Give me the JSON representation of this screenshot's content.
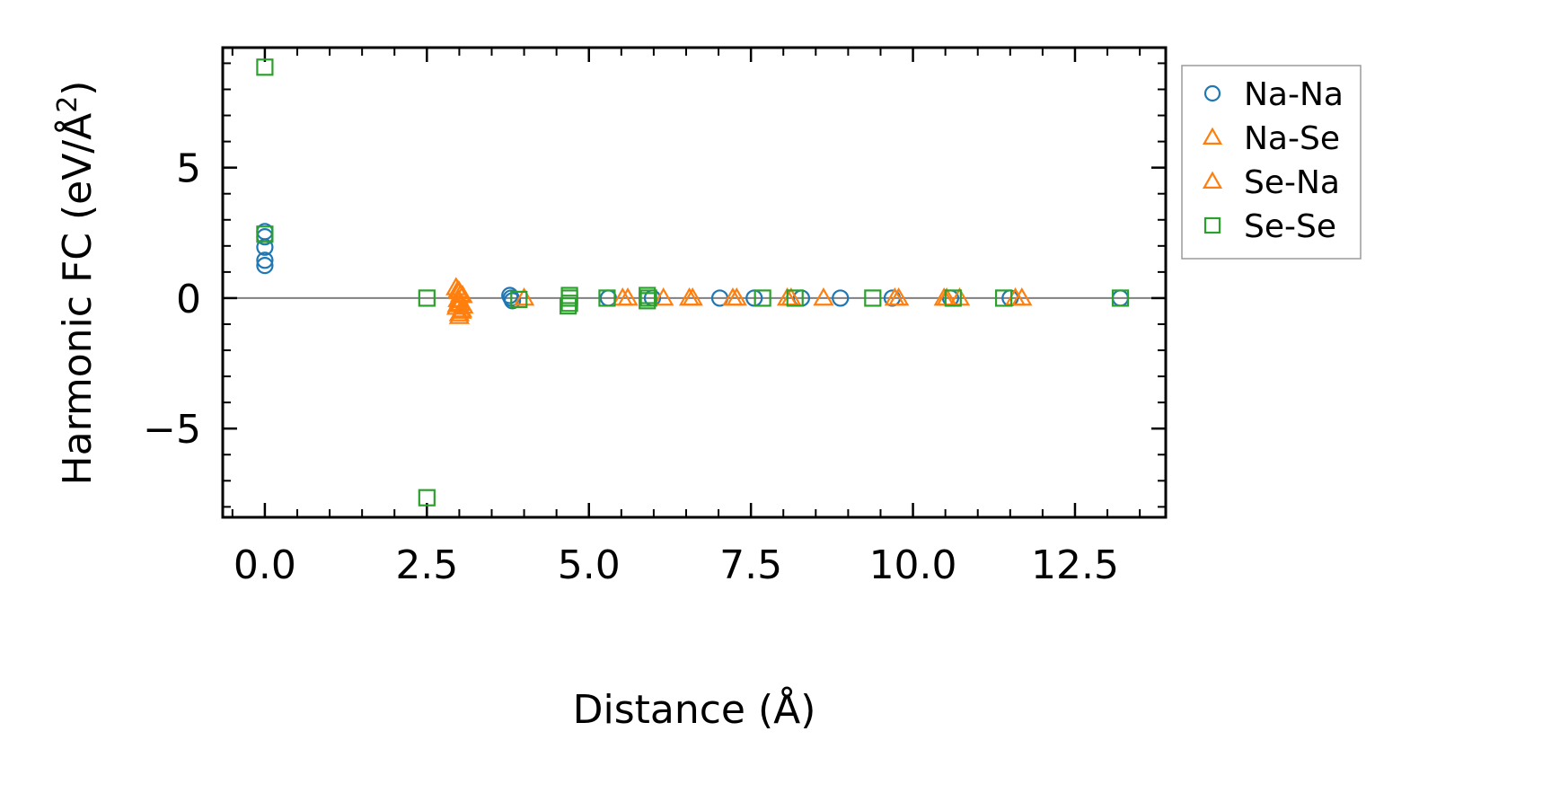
{
  "chart_data": {
    "type": "scatter",
    "title": "",
    "xlabel": "Distance (Å)",
    "ylabel": "Harmonic FC (eV/Å",
    "ylabel_superscript": "2",
    "ylabel_suffix": ")",
    "xlim": [
      -0.65,
      13.9
    ],
    "ylim": [
      -8.4,
      9.6
    ],
    "xticks": [
      0.0,
      2.5,
      5.0,
      7.5,
      10.0,
      12.5
    ],
    "xtick_labels": [
      "0.0",
      "2.5",
      "5.0",
      "7.5",
      "10.0",
      "12.5"
    ],
    "yticks": [
      -5,
      0,
      5
    ],
    "ytick_labels": [
      "−5",
      "0",
      "5"
    ],
    "zero_line": true,
    "legend_position": "outside-right-top",
    "series": [
      {
        "name": "Na-Na",
        "marker": "circle",
        "color": "#1f77b4",
        "points": [
          [
            0.0,
            2.55
          ],
          [
            0.0,
            2.35
          ],
          [
            0.0,
            1.95
          ],
          [
            0.0,
            1.45
          ],
          [
            0.0,
            1.25
          ],
          [
            3.78,
            0.1
          ],
          [
            3.8,
            0.0
          ],
          [
            3.82,
            -0.1
          ],
          [
            5.3,
            0.0
          ],
          [
            5.98,
            0.0
          ],
          [
            7.02,
            0.0
          ],
          [
            7.55,
            0.0
          ],
          [
            8.28,
            0.0
          ],
          [
            8.88,
            0.0
          ],
          [
            9.68,
            0.0
          ],
          [
            10.58,
            0.0
          ],
          [
            11.5,
            0.0
          ],
          [
            13.2,
            0.0
          ]
        ]
      },
      {
        "name": "Na-Se",
        "marker": "triangle",
        "color": "#ff7f0e",
        "points": [
          [
            2.95,
            0.4
          ],
          [
            3.0,
            0.25
          ],
          [
            3.05,
            0.1
          ],
          [
            2.98,
            -0.05
          ],
          [
            3.02,
            -0.2
          ],
          [
            2.96,
            -0.35
          ],
          [
            3.04,
            -0.45
          ],
          [
            3.0,
            -0.6
          ],
          [
            3.06,
            -0.3
          ],
          [
            4.0,
            0.0
          ],
          [
            5.6,
            0.0
          ],
          [
            6.15,
            0.0
          ],
          [
            6.6,
            0.0
          ],
          [
            7.22,
            0.0
          ],
          [
            8.12,
            0.0
          ],
          [
            8.62,
            0.0
          ],
          [
            9.72,
            0.0
          ],
          [
            10.52,
            0.0
          ],
          [
            10.72,
            0.0
          ],
          [
            11.68,
            0.0
          ]
        ]
      },
      {
        "name": "Se-Na",
        "marker": "triangle",
        "color": "#ff7f0e",
        "points": [
          [
            2.98,
            0.3
          ],
          [
            3.02,
            0.15
          ],
          [
            3.0,
            -0.1
          ],
          [
            2.97,
            -0.25
          ],
          [
            3.03,
            -0.5
          ],
          [
            3.0,
            -0.7
          ],
          [
            5.52,
            0.0
          ],
          [
            6.55,
            0.0
          ],
          [
            7.28,
            0.0
          ],
          [
            8.06,
            0.0
          ],
          [
            9.78,
            0.0
          ],
          [
            10.48,
            0.0
          ],
          [
            11.58,
            0.0
          ]
        ]
      },
      {
        "name": "Se-Se",
        "marker": "square",
        "color": "#2ca02c",
        "points": [
          [
            0.0,
            8.85
          ],
          [
            0.0,
            2.45
          ],
          [
            2.5,
            0.0
          ],
          [
            2.5,
            -7.65
          ],
          [
            3.92,
            -0.05
          ],
          [
            4.7,
            0.1
          ],
          [
            4.7,
            0.0
          ],
          [
            4.7,
            -0.2
          ],
          [
            4.68,
            -0.3
          ],
          [
            5.28,
            0.0
          ],
          [
            5.9,
            0.1
          ],
          [
            5.92,
            0.0
          ],
          [
            5.9,
            -0.1
          ],
          [
            7.68,
            0.0
          ],
          [
            8.18,
            0.0
          ],
          [
            9.38,
            0.0
          ],
          [
            10.62,
            0.0
          ],
          [
            11.4,
            0.0
          ],
          [
            13.2,
            0.0
          ]
        ]
      }
    ]
  }
}
